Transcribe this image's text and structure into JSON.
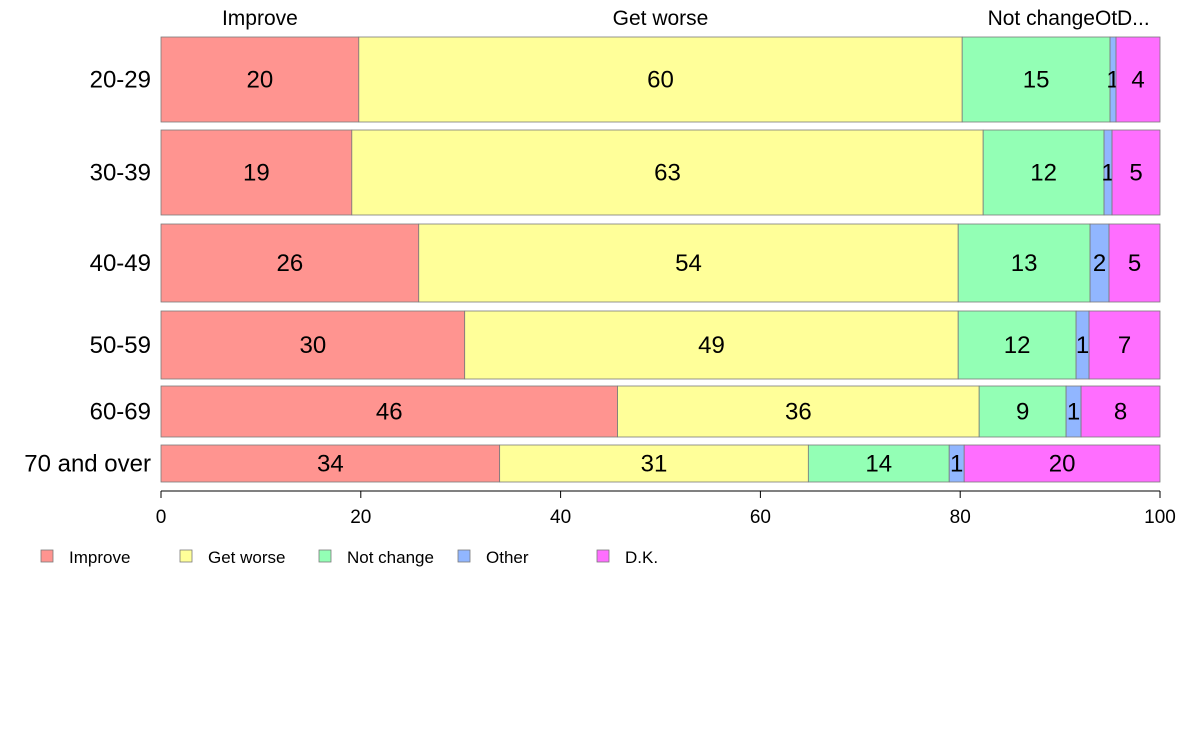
{
  "chart_data": {
    "type": "bar",
    "orientation": "horizontal",
    "stacked": true,
    "title": "",
    "xlabel": "",
    "ylabel": "",
    "xlim": [
      0,
      100
    ],
    "x_ticks": [
      0,
      20,
      40,
      60,
      80,
      100
    ],
    "grid": false,
    "legend_position": "bottom-left",
    "top_labels": [
      "Improve",
      "Get worse",
      "Not change",
      "Ot",
      "D..."
    ],
    "categories": [
      "20-29",
      "30-39",
      "40-49",
      "50-59",
      "60-69",
      "70 and over"
    ],
    "series": [
      {
        "name": "Improve",
        "color": "#ff9490",
        "values": [
          19.8,
          19.1,
          25.8,
          30.4,
          45.7,
          33.9
        ],
        "labels": [
          "20",
          "19",
          "26",
          "30",
          "46",
          "34"
        ]
      },
      {
        "name": "Get worse",
        "color": "#ffff99",
        "values": [
          60.4,
          63.2,
          54.0,
          49.4,
          36.2,
          30.9
        ],
        "labels": [
          "60",
          "63",
          "54",
          "49",
          "36",
          "31"
        ]
      },
      {
        "name": "Not change",
        "color": "#93ffb5",
        "values": [
          14.8,
          12.1,
          13.2,
          11.8,
          8.7,
          14.1
        ],
        "labels": [
          "15",
          "12",
          "13",
          "12",
          "9",
          "14"
        ]
      },
      {
        "name": "Other",
        "color": "#91b6ff",
        "values": [
          0.6,
          0.8,
          1.9,
          1.3,
          1.5,
          1.5
        ],
        "labels": [
          "1",
          "1",
          "2",
          "1",
          "1",
          "1"
        ]
      },
      {
        "name": "D.K.",
        "color": "#ff6eff",
        "values": [
          4.4,
          4.8,
          5.1,
          7.1,
          7.9,
          19.6
        ],
        "labels": [
          "4",
          "5",
          "5",
          "7",
          "8",
          "20"
        ]
      }
    ]
  }
}
